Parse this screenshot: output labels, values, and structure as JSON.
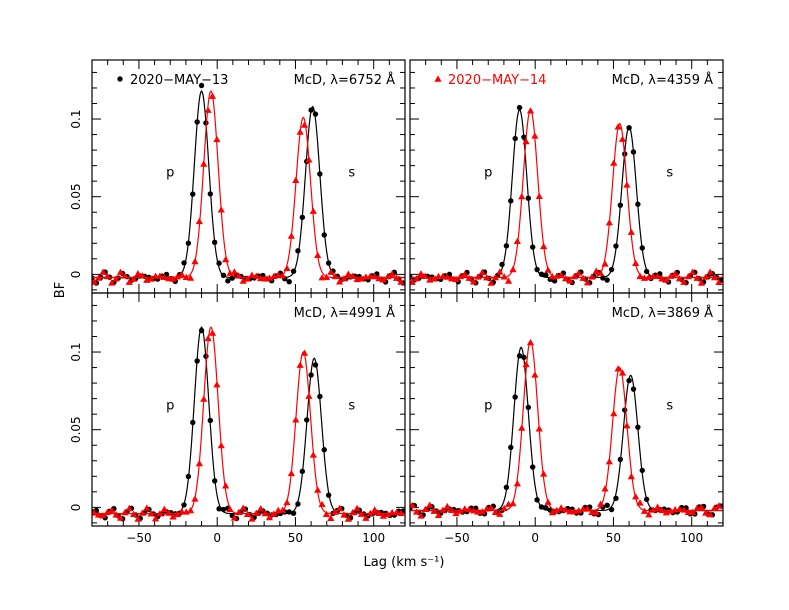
{
  "figure": {
    "xlabel": "Lag (km s⁻¹)",
    "ylabel": "BF"
  },
  "chart_data": [
    {
      "type": "scatter",
      "panel": "top-left",
      "label_text": "McD, λ=6752 Å",
      "legend": {
        "marker": "circle",
        "color": "#000000",
        "text": "2020−MAY−13"
      },
      "xlim": [
        -80,
        120
      ],
      "ylim": [
        -0.012,
        0.138
      ],
      "xticks": [
        -50,
        0,
        50,
        100
      ],
      "xticklabels": [],
      "yticks": [
        0,
        0.05,
        0.1
      ],
      "yticklabels": [
        "0",
        "0.05",
        "0.1"
      ],
      "peak_labels": [
        {
          "text": "p",
          "x": -30,
          "y": 0.063
        },
        {
          "text": "s",
          "x": 86,
          "y": 0.063
        }
      ],
      "series": [
        {
          "name": "2020−MAY−13",
          "marker": "circle",
          "color": "#000000",
          "baseline": -0.002,
          "p": {
            "center": -10,
            "amp": 0.12,
            "sigma": 4.6
          },
          "s": {
            "center": 61,
            "amp": 0.11,
            "sigma": 4.6
          }
        },
        {
          "name": "2020−MAY−14",
          "marker": "triangle",
          "color": "#ff0000",
          "baseline": -0.002,
          "p": {
            "center": -4,
            "amp": 0.12,
            "sigma": 4.6
          },
          "s": {
            "center": 55,
            "amp": 0.103,
            "sigma": 4.6
          }
        }
      ]
    },
    {
      "type": "scatter",
      "panel": "top-right",
      "label_text": "McD, λ=4359 Å",
      "legend": {
        "marker": "triangle",
        "color": "#ff0000",
        "text": "2020−MAY−14"
      },
      "xlim": [
        -80,
        120
      ],
      "ylim": [
        -0.012,
        0.138
      ],
      "xticks": [
        -50,
        0,
        50,
        100
      ],
      "xticklabels": [],
      "yticks": [
        0,
        0.05,
        0.1
      ],
      "yticklabels": [],
      "peak_labels": [
        {
          "text": "p",
          "x": -30,
          "y": 0.063
        },
        {
          "text": "s",
          "x": 86,
          "y": 0.063
        }
      ],
      "series": [
        {
          "name": "2020−MAY−13",
          "marker": "circle",
          "color": "#000000",
          "baseline": -0.002,
          "p": {
            "center": -10,
            "amp": 0.108,
            "sigma": 4.6
          },
          "s": {
            "center": 60,
            "amp": 0.097,
            "sigma": 4.6
          }
        },
        {
          "name": "2020−MAY−14",
          "marker": "triangle",
          "color": "#ff0000",
          "baseline": -0.002,
          "p": {
            "center": -3,
            "amp": 0.108,
            "sigma": 4.6
          },
          "s": {
            "center": 54,
            "amp": 0.099,
            "sigma": 4.6
          }
        }
      ]
    },
    {
      "type": "scatter",
      "panel": "bottom-left",
      "label_text": "McD, λ=4991 Å",
      "legend": null,
      "xlim": [
        -80,
        120
      ],
      "ylim": [
        -0.012,
        0.138
      ],
      "xticks": [
        -50,
        0,
        50,
        100
      ],
      "xticklabels": [
        "−50",
        "0",
        "50",
        "100"
      ],
      "yticks": [
        0,
        0.05,
        0.1
      ],
      "yticklabels": [
        "0",
        "0.05",
        "0.1"
      ],
      "peak_labels": [
        {
          "text": "p",
          "x": -30,
          "y": 0.063
        },
        {
          "text": "s",
          "x": 86,
          "y": 0.063
        }
      ],
      "series": [
        {
          "name": "2020−MAY−13",
          "marker": "circle",
          "color": "#000000",
          "baseline": -0.004,
          "p": {
            "center": -10,
            "amp": 0.12,
            "sigma": 4.6
          },
          "s": {
            "center": 62,
            "amp": 0.1,
            "sigma": 4.6
          }
        },
        {
          "name": "2020−MAY−14",
          "marker": "triangle",
          "color": "#ff0000",
          "baseline": -0.004,
          "p": {
            "center": -4,
            "amp": 0.12,
            "sigma": 4.6
          },
          "s": {
            "center": 55,
            "amp": 0.104,
            "sigma": 4.6
          }
        }
      ]
    },
    {
      "type": "scatter",
      "panel": "bottom-right",
      "label_text": "McD, λ=3869 Å",
      "legend": null,
      "xlim": [
        -80,
        120
      ],
      "ylim": [
        -0.012,
        0.138
      ],
      "xticks": [
        -50,
        0,
        50,
        100
      ],
      "xticklabels": [
        "−50",
        "0",
        "50",
        "100"
      ],
      "yticks": [
        0,
        0.05,
        0.1
      ],
      "yticklabels": [],
      "peak_labels": [
        {
          "text": "p",
          "x": -30,
          "y": 0.063
        },
        {
          "text": "s",
          "x": 86,
          "y": 0.063
        }
      ],
      "series": [
        {
          "name": "2020−MAY−13",
          "marker": "circle",
          "color": "#000000",
          "baseline": -0.002,
          "p": {
            "center": -9,
            "amp": 0.105,
            "sigma": 4.6
          },
          "s": {
            "center": 61,
            "amp": 0.087,
            "sigma": 4.6
          }
        },
        {
          "name": "2020−MAY−14",
          "marker": "triangle",
          "color": "#ff0000",
          "baseline": -0.002,
          "p": {
            "center": -3,
            "amp": 0.109,
            "sigma": 4.6
          },
          "s": {
            "center": 54,
            "amp": 0.092,
            "sigma": 4.6
          }
        }
      ]
    }
  ]
}
